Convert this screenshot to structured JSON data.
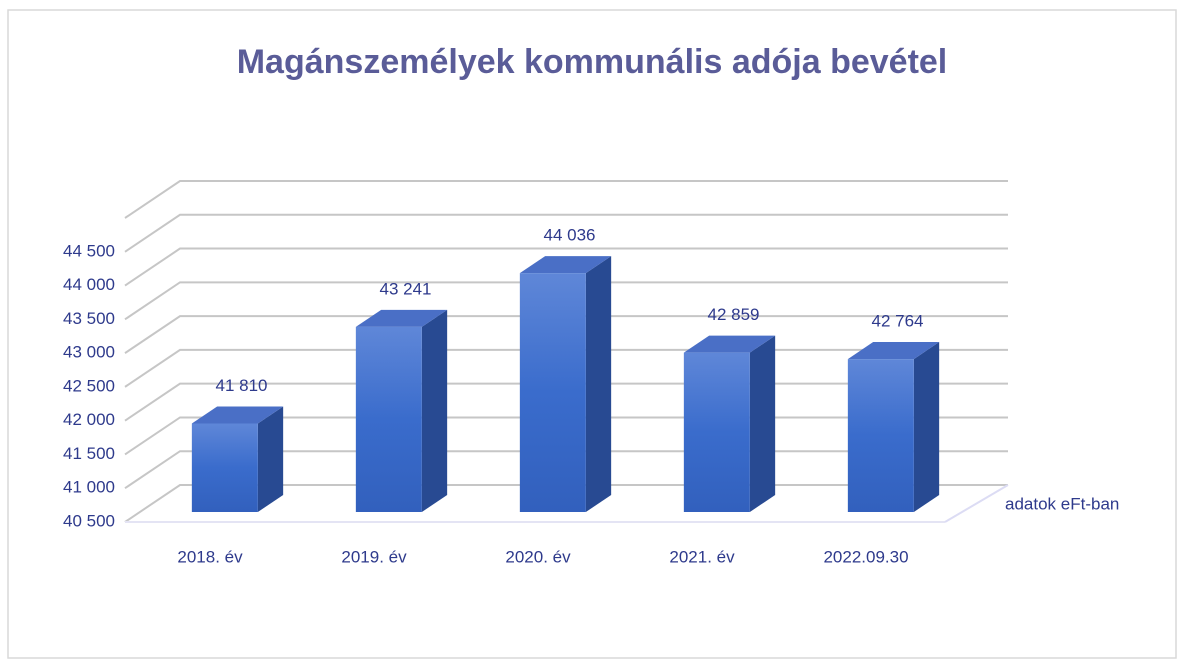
{
  "chart_data": {
    "type": "bar3d",
    "title": "Magánszemélyek kommunális adója bevétel",
    "annotation": "adatok eFt-ban",
    "categories": [
      "2018. év",
      "2019. év",
      "2020. év",
      "2021. év",
      "2022.09.30"
    ],
    "values": [
      41810,
      43241,
      44036,
      42859,
      42764
    ],
    "value_labels": [
      "41 810",
      "43 241",
      "44 036",
      "42 859",
      "42 764"
    ],
    "color": "#4472c4",
    "ylim": [
      40500,
      45000
    ],
    "yticks": [
      {
        "value": 40500,
        "label": "40 500"
      },
      {
        "value": 41000,
        "label": "41 000"
      },
      {
        "value": 41500,
        "label": "41 500"
      },
      {
        "value": 42000,
        "label": "42 000"
      },
      {
        "value": 42500,
        "label": "42 500"
      },
      {
        "value": 43000,
        "label": "43 000"
      },
      {
        "value": 43500,
        "label": "43 500"
      },
      {
        "value": 44000,
        "label": "44 000"
      },
      {
        "value": 44500,
        "label": "44 500"
      }
    ],
    "grid": true
  }
}
